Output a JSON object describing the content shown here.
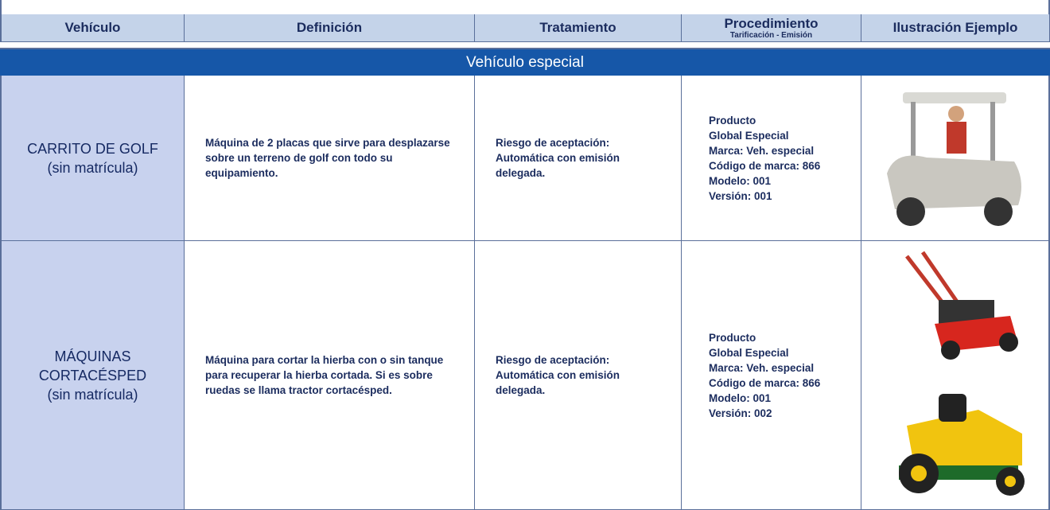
{
  "header": {
    "columns": [
      "Vehículo",
      "Definición",
      "Tratamiento",
      "Procedimiento",
      "Ilustración Ejemplo"
    ],
    "procedure_subtitle": "Tarificación - Emisión"
  },
  "section": "Vehículo especial",
  "rows": [
    {
      "vehicle": [
        "CARRITO DE GOLF",
        "(sin matrícula)"
      ],
      "definition": "Máquina de 2 placas que sirve para desplazarse sobre un terreno de golf con todo su equipamiento.",
      "treatment": "Riesgo de aceptación: Automática con emisión delegada.",
      "procedure": [
        "Producto",
        "Global Especial",
        "Marca: Veh. especial",
        "Código de marca: 866",
        "Modelo: 001",
        "Versión: 001"
      ]
    },
    {
      "vehicle": [
        "MÁQUINAS",
        "CORTACÉSPED",
        "(sin matrícula)"
      ],
      "definition": "Máquina para cortar la hierba con o sin tanque para recuperar la hierba cortada. Si es sobre ruedas se llama tractor cortacésped.",
      "treatment": "Riesgo de aceptación: Automática con emisión delegada.",
      "procedure": [
        "Producto",
        "Global Especial",
        "Marca: Veh. especial",
        "Código de marca: 866",
        "Modelo: 001",
        "Versión: 002"
      ]
    }
  ]
}
